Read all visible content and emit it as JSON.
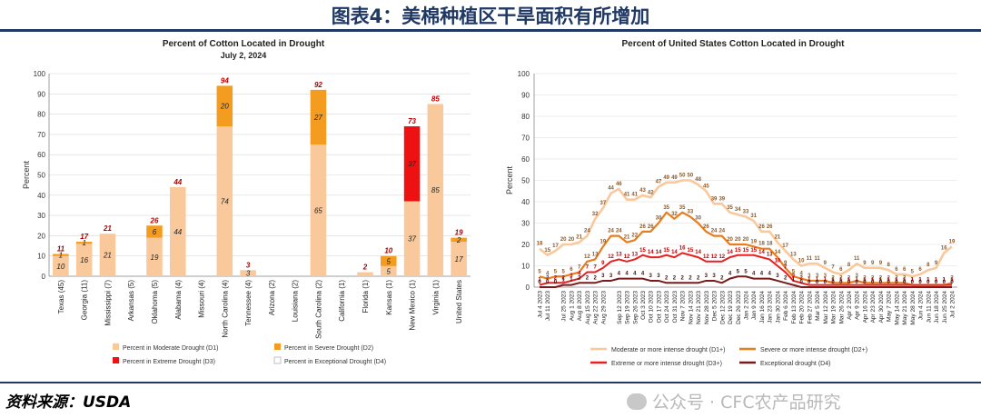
{
  "page": {
    "title": "图表4：美棉种植区干旱面积有所增加",
    "source": "资料来源：USDA",
    "watermark": "公众号 · CFC农产品研究"
  },
  "chart_data": [
    {
      "type": "bar",
      "stacked": true,
      "title": "Percent of Cotton Located in Drought",
      "subtitle": "July 2, 2024",
      "ylabel": "Percent",
      "ylim": [
        0,
        100
      ],
      "yticks": [
        0,
        10,
        20,
        30,
        40,
        50,
        60,
        70,
        80,
        90,
        100
      ],
      "categories": [
        "Texas (45)",
        "Georgia (11)",
        "Mississippi (7)",
        "Arkansas (5)",
        "Oklahoma (5)",
        "Alabama (4)",
        "Missouri (4)",
        "North Carolina (4)",
        "Tennessee (4)",
        "Arizona (2)",
        "Louisiana (2)",
        "South Carolina (2)",
        "California (1)",
        "Florida (1)",
        "Kansas (1)",
        "New Mexico (1)",
        "Virginia (1)",
        "United States"
      ],
      "totals": [
        11,
        17,
        21,
        null,
        26,
        44,
        null,
        94,
        3,
        null,
        null,
        92,
        null,
        2,
        10,
        73,
        85,
        19
      ],
      "series": [
        {
          "name": "Percent in Moderate Drought (D1)",
          "color": "#f9c89b",
          "values": [
            10,
            16,
            21,
            0,
            19,
            44,
            0,
            74,
            3,
            0,
            0,
            65,
            0,
            2,
            5,
            37,
            85,
            17
          ],
          "labels": [
            "10",
            "16",
            "21",
            "",
            "19",
            "44",
            "",
            "74",
            "3",
            "",
            "",
            "65",
            "",
            "",
            "5",
            "37",
            "85",
            "17"
          ]
        },
        {
          "name": "Percent in Severe Drought (D2)",
          "color": "#f39c1f",
          "values": [
            1,
            1,
            0,
            0,
            6,
            0,
            0,
            20,
            0,
            0,
            0,
            27,
            0,
            0,
            5,
            0,
            0,
            2
          ],
          "labels": [
            "1",
            "1",
            "",
            "",
            "6",
            "",
            "",
            "20",
            "",
            "",
            "",
            "27",
            "",
            "",
            "5",
            "",
            "",
            "2"
          ]
        },
        {
          "name": "Percent in Extreme Drought (D3)",
          "color": "#ee1111",
          "values": [
            0,
            0,
            0,
            0,
            0,
            0,
            0,
            0,
            0,
            0,
            0,
            0,
            0,
            0,
            0,
            37,
            0,
            0
          ],
          "labels": [
            "",
            "",
            "",
            "",
            "",
            "",
            "",
            "",
            "",
            "",
            "",
            "",
            "",
            "",
            "",
            "37",
            "",
            ""
          ]
        },
        {
          "name": "Percent in Exceptional Drought (D4)",
          "color": "#ffffff",
          "values": [
            0,
            0,
            0,
            0,
            0,
            0,
            0,
            0,
            0,
            0,
            0,
            0,
            0,
            0,
            0,
            0,
            0,
            0
          ],
          "labels": []
        }
      ],
      "legend": "bottom"
    },
    {
      "type": "line",
      "title": "Percent of United States Cotton Located in Drought",
      "ylabel": "Percent",
      "ylim": [
        0,
        100
      ],
      "yticks": [
        0,
        10,
        20,
        30,
        40,
        50,
        60,
        70,
        80,
        90,
        100
      ],
      "x": [
        "Jul 4 2023",
        "Jul 11 2023",
        "Jul 18 2023",
        "Jul 25 2023",
        "Aug 1 2023",
        "Aug 8 2023",
        "Aug 15 2023",
        "Aug 22 2023",
        "Aug 29 2023",
        "Sep 5 2023",
        "Sep 12 2023",
        "Sep 19 2023",
        "Sep 26 2023",
        "Oct 3 2023",
        "Oct 10 2023",
        "Oct 17 2023",
        "Oct 24 2023",
        "Oct 31 2023",
        "Nov 7 2023",
        "Nov 14 2023",
        "Nov 21 2023",
        "Nov 28 2023",
        "Dec 5 2023",
        "Dec 12 2023",
        "Dec 19 2023",
        "Dec 26 2023",
        "Jan 2 2024",
        "Jan 9 2024",
        "Jan 16 2024",
        "Jan 23 2024",
        "Jan 30 2024",
        "Feb 6 2024",
        "Feb 13 2024",
        "Feb 20 2024",
        "Feb 27 2024",
        "Mar 5 2024",
        "Mar 12 2024",
        "Mar 19 2024",
        "Mar 26 2024",
        "Apr 2 2024",
        "Apr 9 2024",
        "Apr 16 2024",
        "Apr 23 2024",
        "Apr 30 2024",
        "May 7 2024",
        "May 14 2024",
        "May 21 2024",
        "May 28 2024",
        "Jun 4 2024",
        "Jun 11 2024",
        "Jun 18 2024",
        "Jun 25 2024",
        "Jul 2 2024"
      ],
      "x_tick_labels": [
        "Jul 4 2023",
        "Jul 11 2023",
        "Jul 25 2023",
        "Aug 1 2023",
        "Aug 8 2023",
        "Aug 15 2023",
        "Aug 22 2023",
        "Aug 29 2023",
        "Sep 12 2023",
        "Sep 19 2023",
        "Sep 26 2023",
        "Oct 3 2023",
        "Oct 10 2023",
        "Oct 17 2023",
        "Oct 24 2023",
        "Oct 31 2023",
        "Nov 7 2023",
        "Nov 14 2023",
        "Nov 21 2023",
        "Nov 28 2023",
        "Dec 5 2023",
        "Dec 12 2023",
        "Dec 19 2023",
        "Dec 26 2023",
        "Jan 2 2024",
        "Jan 9 2024",
        "Jan 16 2024",
        "Jan 23 2024",
        "Jan 30 2024",
        "Feb 6 2024",
        "Feb 13 2024",
        "Feb 20 2024",
        "Feb 27 2024",
        "Mar 5 2024",
        "Mar 12 2024",
        "Mar 19 2024",
        "Mar 26 2024",
        "Apr 2 2024",
        "Apr 9 2024",
        "Apr 16 2024",
        "Apr 23 2024",
        "Apr 30 2024",
        "May 7 2024",
        "May 14 2024",
        "May 21 2024",
        "May 28 2024",
        "Jun 4 2024",
        "Jun 11 2024",
        "Jun 18 2024",
        "Jun 25 2024",
        "Jul 2 2024"
      ],
      "series": [
        {
          "name": "Moderate or more intense drought (D1+)",
          "color": "#f9c89b",
          "values": [
            18,
            15,
            17,
            20,
            20,
            21,
            24,
            32,
            37,
            44,
            46,
            41,
            41,
            43,
            42,
            47,
            49,
            49,
            50,
            50,
            48,
            45,
            39,
            39,
            35,
            34,
            33,
            31,
            26,
            26,
            21,
            17,
            13,
            10,
            11,
            11,
            9,
            7,
            6,
            8,
            11,
            9,
            9,
            9,
            8,
            6,
            6,
            5,
            6,
            8,
            9,
            16,
            19
          ]
        },
        {
          "name": "Severe or more intense drought (D2+)",
          "color": "#e87d1e",
          "values": [
            5,
            4,
            5,
            5,
            6,
            7,
            12,
            13,
            19,
            24,
            24,
            21,
            22,
            26,
            26,
            30,
            35,
            32,
            35,
            33,
            30,
            26,
            24,
            24,
            20,
            20,
            20,
            19,
            18,
            18,
            14,
            9,
            5,
            4,
            3,
            3,
            3,
            2,
            2,
            2,
            3,
            2,
            2,
            2,
            2,
            2,
            2,
            1,
            1,
            1,
            1,
            1,
            2
          ]
        },
        {
          "name": "Extreme or more intense drought (D3+)",
          "color": "#e82020",
          "values": [
            1,
            2,
            2,
            2,
            3,
            4,
            7,
            7,
            9,
            12,
            13,
            12,
            13,
            15,
            14,
            14,
            15,
            14,
            16,
            15,
            14,
            12,
            12,
            12,
            14,
            15,
            15,
            15,
            14,
            13,
            10,
            7,
            3,
            2,
            1,
            1,
            1,
            1,
            1,
            1,
            1,
            1,
            1,
            1,
            1,
            1,
            1,
            1,
            1,
            1,
            1,
            1,
            1
          ]
        },
        {
          "name": "Exceptional drought (D4)",
          "color": "#7a1a1a",
          "values": [
            0,
            0,
            0,
            1,
            1,
            2,
            2,
            2,
            3,
            3,
            4,
            4,
            4,
            4,
            3,
            3,
            2,
            2,
            2,
            2,
            2,
            3,
            3,
            2,
            4,
            5,
            5,
            4,
            4,
            4,
            3,
            2,
            1,
            0,
            0,
            0,
            0,
            0,
            0,
            0,
            0,
            0,
            0,
            0,
            0,
            0,
            0,
            0,
            0,
            0,
            0,
            0,
            0
          ]
        }
      ],
      "legend": "bottom"
    }
  ]
}
